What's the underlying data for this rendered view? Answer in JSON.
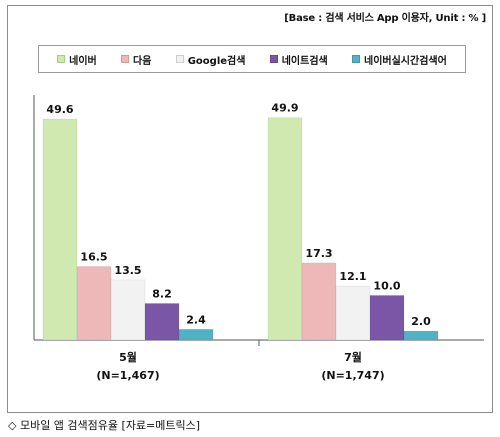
{
  "header": {
    "base_note": "[Base : 검색 서비스 App 이용자, Unit : % ]"
  },
  "caption": "◇ 모바일 앱 검색점유율 [자료=메트릭스]",
  "chart_data": {
    "type": "bar",
    "title": "",
    "xlabel": "",
    "ylabel": "",
    "ylim": [
      0,
      55
    ],
    "grid": false,
    "legend_position": "top",
    "categories": [
      "5월",
      "7월"
    ],
    "category_sublabels": [
      "(N=1,467)",
      "(N=1,747)"
    ],
    "series": [
      {
        "name": "네이버",
        "color": "#cfe9b0",
        "values": [
          49.6,
          49.9
        ]
      },
      {
        "name": "다음",
        "color": "#efb8b8",
        "values": [
          16.5,
          17.3
        ]
      },
      {
        "name": "Google검색",
        "color": "#f2f2f2",
        "values": [
          13.5,
          12.1
        ]
      },
      {
        "name": "네이트검색",
        "color": "#7b56a6",
        "values": [
          8.2,
          10.0
        ]
      },
      {
        "name": "네이버실시간검색어",
        "color": "#4fb2c6",
        "values": [
          2.4,
          2.0
        ]
      }
    ]
  }
}
